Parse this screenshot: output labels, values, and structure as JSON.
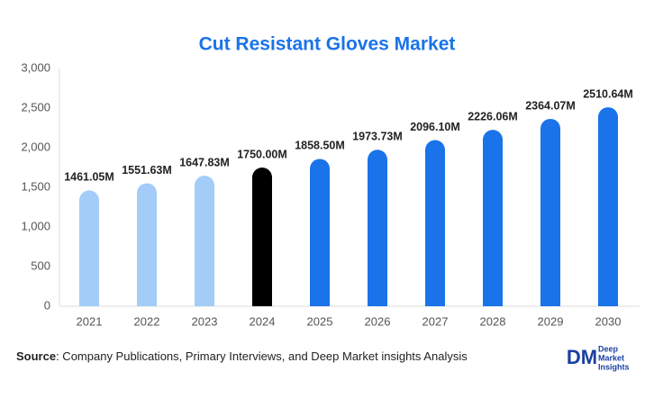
{
  "chart_data": {
    "type": "bar",
    "title": "Cut Resistant Gloves Market",
    "categories": [
      "2021",
      "2022",
      "2023",
      "2024",
      "2025",
      "2026",
      "2027",
      "2028",
      "2029",
      "2030"
    ],
    "values": [
      1461.05,
      1551.63,
      1647.83,
      1750.0,
      1858.5,
      1973.73,
      2096.1,
      2226.06,
      2364.07,
      2510.64
    ],
    "value_labels": [
      "1461.05M",
      "1551.63M",
      "1647.83M",
      "1750.00M",
      "1858.50M",
      "1973.73M",
      "2096.10M",
      "2226.06M",
      "2364.07M",
      "2510.64M"
    ],
    "colors": [
      "#a3cdf8",
      "#a3cdf8",
      "#a3cdf8",
      "#000000",
      "#1a73e8",
      "#1a73e8",
      "#1a73e8",
      "#1a73e8",
      "#1a73e8",
      "#1a73e8"
    ],
    "ylim": [
      0,
      3000
    ],
    "yticks": [
      0,
      500,
      {
        "value": 1000,
        "label": "1,000"
      },
      {
        "value": 1500,
        "label": "1,500"
      },
      {
        "value": 2000,
        "label": "2,000"
      },
      {
        "value": 2500,
        "label": "2,500"
      },
      {
        "value": 3000,
        "label": "3,000"
      }
    ],
    "grid": false
  },
  "footer": {
    "source_label": "Source",
    "source_text": ": Company Publications, Primary Interviews, and Deep Market insights Analysis",
    "logo": {
      "mark": "DM",
      "lines": [
        "Deep",
        "Market",
        "Insights"
      ]
    }
  }
}
